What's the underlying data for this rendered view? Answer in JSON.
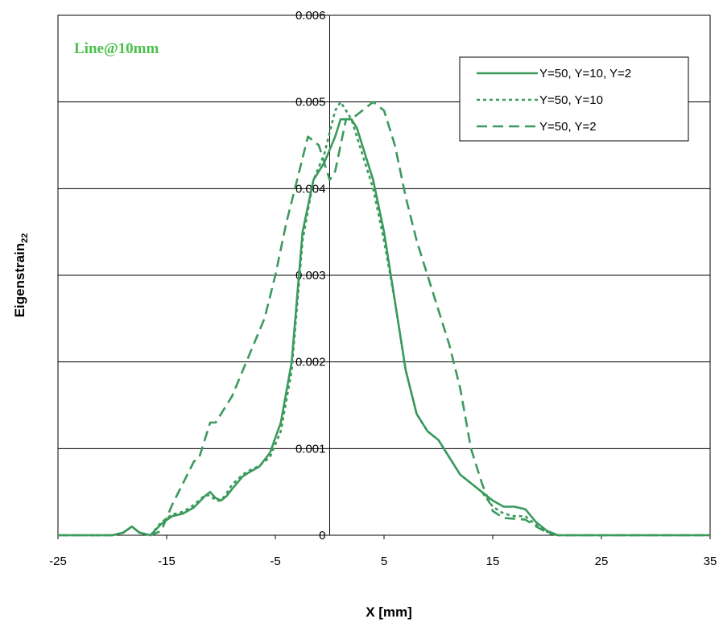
{
  "chart_data": {
    "type": "line",
    "annotation": "Line@10mm",
    "xlabel": "X [mm]",
    "ylabel_main": "Eigenstrain",
    "ylabel_sub": "22",
    "xlim": [
      -25,
      35
    ],
    "ylim": [
      0,
      0.006
    ],
    "x_ticks": [
      "-25",
      "-15",
      "-5",
      "5",
      "15",
      "25",
      "35"
    ],
    "y_ticks": [
      "0",
      "0.001",
      "0.002",
      "0.003",
      "0.004",
      "0.005",
      "0.006"
    ],
    "grid": "horizontal",
    "legend_position": "top-right",
    "color": "#3a9a5b",
    "annotation_color": "#4cc04c",
    "series": [
      {
        "name": "Y=50, Y=10, Y=2",
        "style": "solid",
        "x": [
          -25,
          -20,
          -19,
          -18.2,
          -17.5,
          -16.5,
          -15.5,
          -14.5,
          -13.5,
          -12.5,
          -11.5,
          -11,
          -10.5,
          -10,
          -9.5,
          -9,
          -8,
          -7.5,
          -6.5,
          -5.5,
          -4.5,
          -3.5,
          -2.5,
          -1.5,
          -0.5,
          0.5,
          1,
          1.5,
          2,
          2.5,
          3,
          4,
          5,
          6,
          7,
          8,
          9,
          10,
          11,
          12,
          13,
          14,
          15,
          16,
          17,
          18,
          19,
          20,
          21,
          35
        ],
        "y": [
          0,
          0,
          3e-05,
          0.0001,
          3e-05,
          0,
          0.00013,
          0.00022,
          0.00025,
          0.00032,
          0.00045,
          0.0005,
          0.00043,
          0.0004,
          0.00045,
          0.00053,
          0.00068,
          0.00072,
          0.00079,
          0.00095,
          0.0013,
          0.002,
          0.0035,
          0.0041,
          0.0043,
          0.0046,
          0.0048,
          0.0048,
          0.0048,
          0.0047,
          0.0045,
          0.0041,
          0.0035,
          0.0027,
          0.0019,
          0.0014,
          0.0012,
          0.0011,
          0.0009,
          0.0007,
          0.0006,
          0.0005,
          0.0004,
          0.00033,
          0.00033,
          0.0003,
          0.00015,
          5e-05,
          0,
          0
        ]
      },
      {
        "name": "Y=50, Y=10",
        "style": "dotted",
        "x": [
          -25,
          -20,
          -19,
          -18.2,
          -17.5,
          -16.5,
          -15.5,
          -14.5,
          -13.5,
          -12.5,
          -11.5,
          -11,
          -10.5,
          -10,
          -9.5,
          -9,
          -8,
          -7.5,
          -6.5,
          -5.5,
          -4.5,
          -3.5,
          -2.5,
          -1.5,
          -0.5,
          0.5,
          1,
          1.5,
          2,
          2.5,
          3,
          4,
          5,
          6,
          7,
          8,
          9,
          10,
          11,
          12,
          13,
          14,
          15,
          16,
          17,
          18,
          19,
          20,
          21,
          35
        ],
        "y": [
          0,
          0,
          3e-05,
          0.0001,
          3e-05,
          0,
          0.00015,
          0.00024,
          0.00027,
          0.00035,
          0.00046,
          0.00046,
          0.0004,
          0.0004,
          0.00048,
          0.00058,
          0.0007,
          0.00074,
          0.0008,
          0.0009,
          0.0012,
          0.0019,
          0.0034,
          0.0041,
          0.0044,
          0.0049,
          0.005,
          0.0049,
          0.0048,
          0.0046,
          0.0044,
          0.004,
          0.0034,
          0.0027,
          0.0019,
          0.0014,
          0.0012,
          0.0011,
          0.0009,
          0.0007,
          0.0006,
          0.0005,
          0.00033,
          0.00025,
          0.00022,
          0.00022,
          0.00012,
          4e-05,
          0,
          0
        ]
      },
      {
        "name": "Y=50, Y=2",
        "style": "dashed",
        "x": [
          -25,
          -20,
          -19,
          -18.2,
          -17.5,
          -16.5,
          -15.5,
          -14.5,
          -13.5,
          -12.5,
          -12,
          -11.5,
          -11,
          -10.5,
          -10,
          -9,
          -8,
          -7,
          -6,
          -5,
          -4,
          -3,
          -2,
          -1,
          0,
          0.5,
          1,
          1.5,
          2,
          3,
          4,
          5,
          6,
          7,
          8,
          9,
          10,
          11,
          12,
          13,
          14,
          15,
          16,
          17,
          18,
          19,
          20,
          21,
          35
        ],
        "y": [
          0,
          0,
          3e-05,
          0.0001,
          3e-05,
          0,
          5e-05,
          0.00035,
          0.0006,
          0.00085,
          0.0009,
          0.0011,
          0.0013,
          0.0013,
          0.0014,
          0.0016,
          0.0019,
          0.0022,
          0.0025,
          0.003,
          0.0036,
          0.0041,
          0.0046,
          0.0045,
          0.0041,
          0.0042,
          0.0045,
          0.0048,
          0.0048,
          0.0049,
          0.005,
          0.0049,
          0.0045,
          0.0039,
          0.0034,
          0.003,
          0.0026,
          0.0022,
          0.0017,
          0.001,
          0.0006,
          0.00028,
          0.0002,
          0.00019,
          0.00018,
          0.0001,
          3e-05,
          0,
          0
        ]
      }
    ]
  }
}
